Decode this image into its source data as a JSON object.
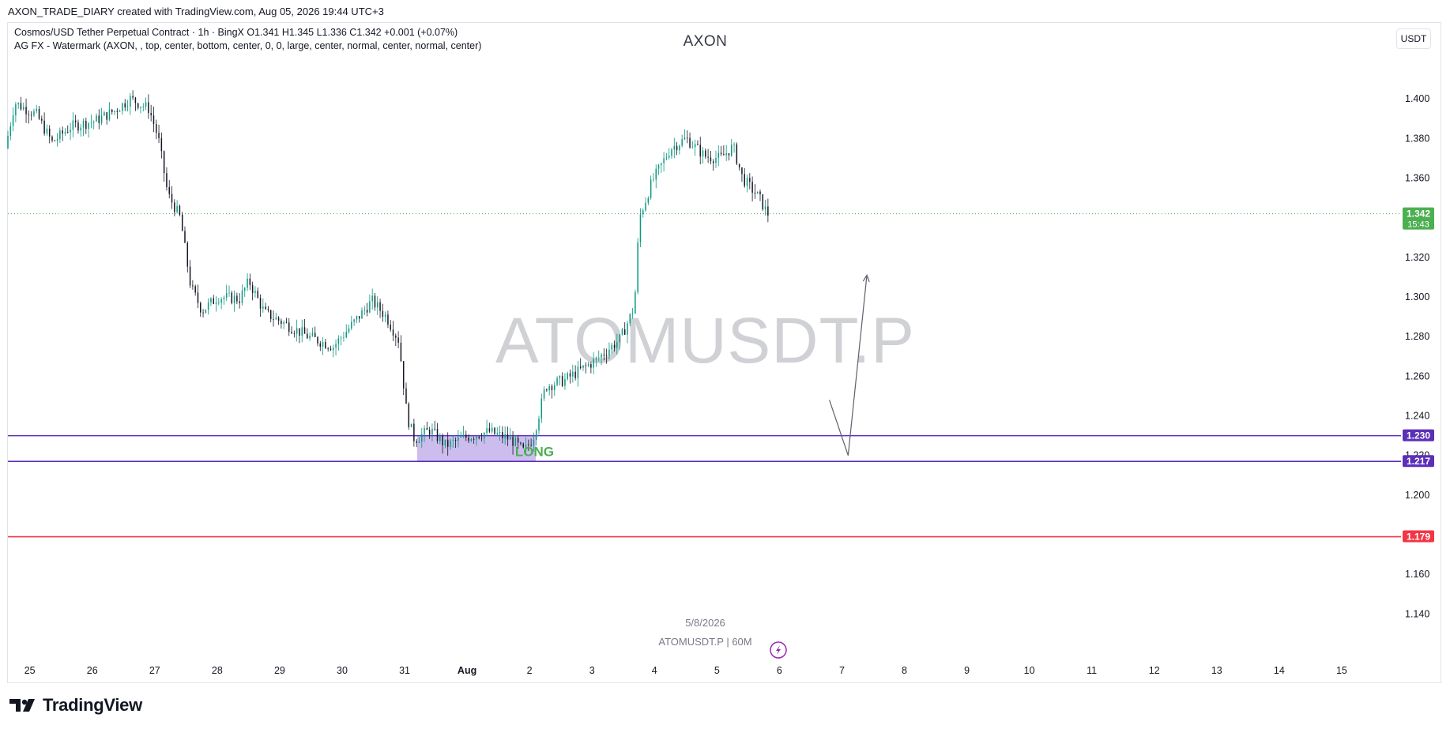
{
  "header": {
    "caption": "AXON_TRADE_DIARY created with TradingView.com, Aug 05, 2026 19:44 UTC+3"
  },
  "legend": {
    "line1": "Cosmos/USD Tether Perpetual Contract · 1h · BingX  O1.341  H1.345  L1.336  C1.342  +0.001 (+0.07%)",
    "line2": "AG FX - Watermark (AXON, , top, center, bottom, center, 0, 0, large, center, normal, center, normal, center)"
  },
  "unit_button": "USDT",
  "watermark": {
    "top_text": "AXON",
    "big_text": "ATOMUSDT.P",
    "date_text": "5/8/2026",
    "symbol_text": "ATOMUSDT.P | 60M"
  },
  "footer": {
    "logo_text": "TradingView"
  },
  "colors": {
    "up": "#089981",
    "down": "#131722",
    "zone_fill": "#c8b6ec",
    "zone_line": "#5b2fb8",
    "stop_line": "#f23645",
    "last_price": "#4caf50",
    "long_text": "#4caf50",
    "arrow": "#5d606b"
  },
  "chart_data": {
    "type": "candlestick",
    "symbol": "ATOMUSDT.P",
    "interval": "1h",
    "y_axis": {
      "ylim": [
        1.129,
        1.414
      ],
      "ticks": [
        1.4,
        1.38,
        1.36,
        1.32,
        1.3,
        1.28,
        1.26,
        1.24,
        1.22,
        1.2,
        1.16,
        1.14
      ],
      "tick_labels": [
        "1.400",
        "1.380",
        "1.360",
        "1.320",
        "1.300",
        "1.280",
        "1.260",
        "1.240",
        "1.220",
        "1.200",
        "1.160",
        "1.140"
      ]
    },
    "x_axis": {
      "labels": [
        "25",
        "26",
        "27",
        "28",
        "29",
        "30",
        "31",
        "Aug",
        "2",
        "3",
        "4",
        "5",
        "6",
        "7",
        "8",
        "9",
        "10",
        "11",
        "12",
        "13",
        "14",
        "15"
      ],
      "day_index": [
        -7,
        -6,
        -5,
        -4,
        -3,
        -2,
        -1,
        0,
        1,
        2,
        3,
        4,
        5,
        6,
        7,
        8,
        9,
        10,
        11,
        12,
        13,
        14
      ],
      "xlim_days": [
        -7.35,
        14.95
      ]
    },
    "price_path_anchors": [
      [
        -7.35,
        1.375
      ],
      [
        -7.2,
        1.398
      ],
      [
        -6.85,
        1.392
      ],
      [
        -6.6,
        1.378
      ],
      [
        -6.3,
        1.386
      ],
      [
        -5.9,
        1.389
      ],
      [
        -5.6,
        1.394
      ],
      [
        -5.35,
        1.4
      ],
      [
        -5.05,
        1.395
      ],
      [
        -4.9,
        1.38
      ],
      [
        -4.75,
        1.352
      ],
      [
        -4.55,
        1.34
      ],
      [
        -4.38,
        1.305
      ],
      [
        -4.2,
        1.293
      ],
      [
        -3.95,
        1.3
      ],
      [
        -3.6,
        1.299
      ],
      [
        -3.45,
        1.308
      ],
      [
        -3.2,
        1.292
      ],
      [
        -2.9,
        1.287
      ],
      [
        -2.5,
        1.28
      ],
      [
        -2.1,
        1.275
      ],
      [
        -1.8,
        1.286
      ],
      [
        -1.48,
        1.298
      ],
      [
        -1.25,
        1.29
      ],
      [
        -1.05,
        1.278
      ],
      [
        -0.92,
        1.24
      ],
      [
        -0.8,
        1.228
      ],
      [
        -0.55,
        1.233
      ],
      [
        -0.3,
        1.225
      ],
      [
        0.0,
        1.229
      ],
      [
        0.4,
        1.232
      ],
      [
        0.75,
        1.228
      ],
      [
        0.95,
        1.222
      ],
      [
        1.1,
        1.229
      ],
      [
        1.3,
        1.255
      ],
      [
        1.6,
        1.258
      ],
      [
        1.85,
        1.263
      ],
      [
        2.1,
        1.268
      ],
      [
        2.5,
        1.279
      ],
      [
        2.72,
        1.295
      ],
      [
        2.8,
        1.34
      ],
      [
        3.0,
        1.358
      ],
      [
        3.3,
        1.375
      ],
      [
        3.55,
        1.38
      ],
      [
        3.85,
        1.371
      ],
      [
        4.1,
        1.37
      ],
      [
        4.3,
        1.376
      ],
      [
        4.45,
        1.36
      ],
      [
        4.72,
        1.35
      ],
      [
        4.85,
        1.342
      ]
    ],
    "last_price": {
      "value": 1.342,
      "label": "1.342",
      "countdown": "15:43"
    },
    "levels": [
      {
        "price": 1.23,
        "label": "1.230",
        "role": "zone-top"
      },
      {
        "price": 1.217,
        "label": "1.217",
        "role": "zone-bottom"
      },
      {
        "price": 1.179,
        "label": "1.179",
        "role": "stop"
      }
    ],
    "zone": {
      "from_day": -0.8,
      "to_day": 1.1,
      "top": 1.23,
      "bottom": 1.217
    },
    "annotation": {
      "text": "LONG",
      "day": 1.08,
      "price": 1.222
    },
    "arrow_path": [
      [
        5.8,
        1.248
      ],
      [
        6.1,
        1.22
      ],
      [
        6.4,
        1.311
      ]
    ]
  }
}
